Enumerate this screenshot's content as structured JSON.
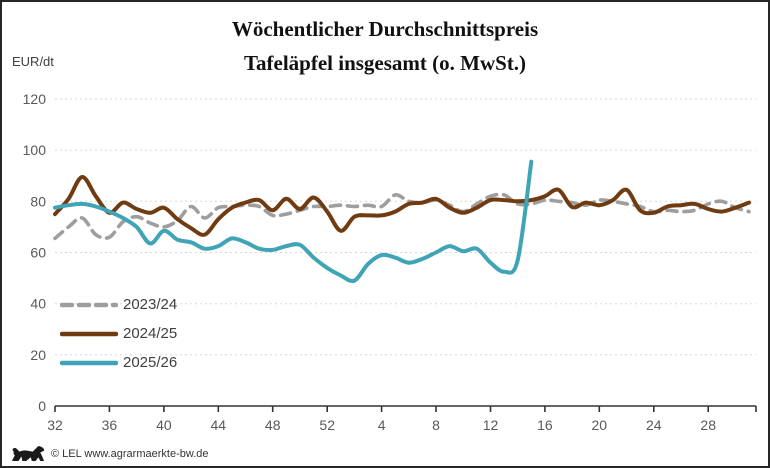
{
  "header": {
    "title_line1": "Wöchentlicher Durchschnittspreis",
    "title_line2": "Tafeläpfel insgesamt (o. MwSt.)",
    "y_unit": "EUR/dt"
  },
  "footer": {
    "copyright": "© LEL www.agrarmaerkte-bw.de",
    "logo": "bw-lion-logo"
  },
  "colors": {
    "grid": "#D8D8D8",
    "axis": "#333333",
    "tick_text": "#595959",
    "title_text": "#111111",
    "frame_border": "#262626"
  },
  "chart_data": {
    "type": "line",
    "title": "Wöchentlicher Durchschnittspreis Tafeläpfel insgesamt (o. MwSt.)",
    "ylabel": "EUR/dt",
    "grid": "horizontal-dashed",
    "legend_position": "left-middle",
    "y_axis": {
      "min": 0,
      "max": 120,
      "tick_step": 20,
      "ticks": [
        0,
        20,
        40,
        60,
        80,
        100,
        120
      ]
    },
    "x_axis": {
      "categories": [
        32,
        33,
        34,
        35,
        36,
        37,
        38,
        39,
        40,
        41,
        42,
        43,
        44,
        45,
        46,
        47,
        48,
        49,
        50,
        51,
        52,
        1,
        2,
        3,
        4,
        5,
        6,
        7,
        8,
        9,
        10,
        11,
        12,
        13,
        14,
        15,
        16,
        17,
        18,
        19,
        20,
        21,
        22,
        23,
        24,
        25,
        26,
        27,
        28,
        29,
        30,
        31
      ],
      "tick_labels": [
        32,
        36,
        40,
        44,
        48,
        52,
        4,
        8,
        12,
        16,
        20,
        24,
        28
      ]
    },
    "series": [
      {
        "name": "2023/24",
        "style": "dashed",
        "color": "#9E9E9E",
        "values": [
          65.5,
          70,
          73.5,
          67,
          66,
          72,
          74,
          71.5,
          70,
          72.5,
          78,
          73.5,
          77.5,
          78,
          78.5,
          78,
          74.5,
          75,
          76.5,
          78,
          78,
          78.5,
          78,
          78.5,
          78,
          82.5,
          80,
          79.5,
          80.5,
          78.5,
          76,
          79,
          82,
          82.5,
          79,
          79,
          80.5,
          80,
          79.5,
          78.5,
          80.5,
          80,
          79,
          78,
          76,
          76.5,
          76,
          76.5,
          79,
          80,
          77.5,
          76
        ]
      },
      {
        "name": "2024/25",
        "style": "solid",
        "color": "#713B11",
        "values": [
          75,
          81,
          89.5,
          82,
          75.5,
          79.5,
          77,
          75.5,
          77.5,
          73,
          69.5,
          67,
          73,
          77.5,
          79.5,
          80.5,
          76.5,
          81,
          77,
          81.5,
          76,
          68.5,
          74,
          74.5,
          74.5,
          76,
          79,
          79.5,
          81,
          77.5,
          75.5,
          77.5,
          80.5,
          80.5,
          80,
          80.5,
          82,
          84.5,
          77.8,
          79.5,
          78.5,
          80.5,
          84.5,
          76.5,
          75.5,
          78,
          78.5,
          79,
          77,
          76,
          77.5,
          79.5
        ]
      },
      {
        "name": "2025/26",
        "style": "solid",
        "color": "#3EA4B6",
        "values": [
          77.5,
          78.5,
          79,
          78,
          76,
          73.5,
          70,
          63.5,
          68.5,
          65,
          64,
          61.5,
          62.5,
          65.5,
          64,
          61.5,
          61,
          62.5,
          63,
          58,
          54,
          51,
          49,
          55.5,
          59,
          58,
          56,
          57.5,
          60,
          62.5,
          60.5,
          61.5,
          56,
          52.5,
          57,
          95.5
        ]
      }
    ]
  }
}
